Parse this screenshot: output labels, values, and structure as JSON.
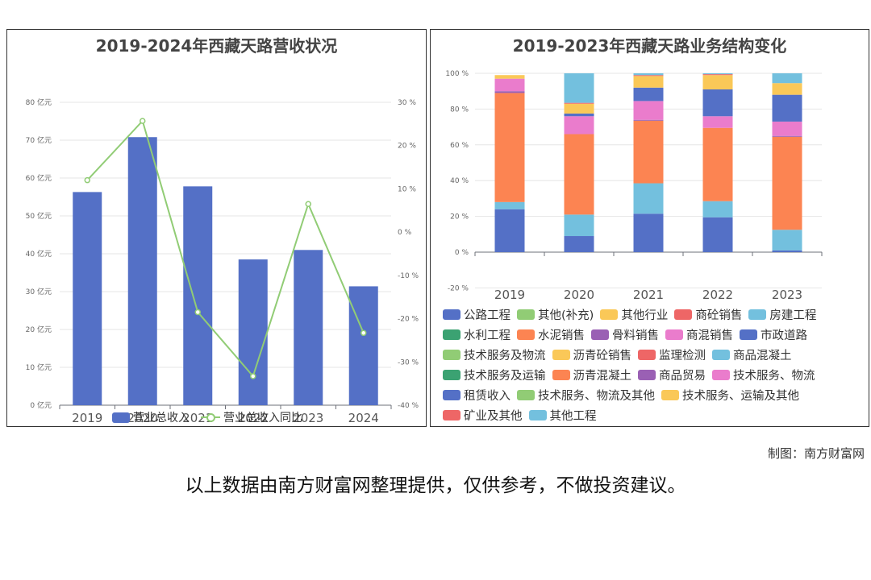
{
  "left": {
    "title": "2019-2024年西藏天路营收状况",
    "y_left_ticks": [
      "0 亿元",
      "10 亿元",
      "20 亿元",
      "30 亿元",
      "40 亿元",
      "50 亿元",
      "60 亿元",
      "70 亿元",
      "80 亿元"
    ],
    "y_right_ticks": [
      "-40 %",
      "-30 %",
      "-20 %",
      "-10 %",
      "0 %",
      "10 %",
      "20 %",
      "30 %"
    ],
    "legend": {
      "bar": "营业总收入",
      "line": "营业总收入同比"
    },
    "colors": {
      "bar": "#5470c6",
      "line": "#91cc75"
    }
  },
  "right": {
    "title": "2019-2023年西藏天路业务结构变化",
    "y_ticks": [
      "-20 %",
      "0 %",
      "20 %",
      "40 %",
      "60 %",
      "80 %",
      "100 %"
    ]
  },
  "legend_right": [
    {
      "label": "公路工程",
      "color": "#5470c6"
    },
    {
      "label": "其他(补充)",
      "color": "#91cc75"
    },
    {
      "label": "其他行业",
      "color": "#fac858"
    },
    {
      "label": "商砼销售",
      "color": "#ee6666"
    },
    {
      "label": "房建工程",
      "color": "#73c0de"
    },
    {
      "label": "水利工程",
      "color": "#3ba272"
    },
    {
      "label": "水泥销售",
      "color": "#fc8452"
    },
    {
      "label": "骨料销售",
      "color": "#9a60b4"
    },
    {
      "label": "商混销售",
      "color": "#ea7ccc"
    },
    {
      "label": "市政道路",
      "color": "#5470c6"
    },
    {
      "label": "技术服务及物流",
      "color": "#91cc75"
    },
    {
      "label": "沥青砼销售",
      "color": "#fac858"
    },
    {
      "label": "监理检测",
      "color": "#ee6666"
    },
    {
      "label": "商品混凝土",
      "color": "#73c0de"
    },
    {
      "label": "技术服务及运输",
      "color": "#3ba272"
    },
    {
      "label": "沥青混凝土",
      "color": "#fc8452"
    },
    {
      "label": "商品贸易",
      "color": "#9a60b4"
    },
    {
      "label": "技术服务、物流",
      "color": "#ea7ccc"
    },
    {
      "label": "租赁收入",
      "color": "#5470c6"
    },
    {
      "label": "技术服务、物流及其他",
      "color": "#91cc75"
    },
    {
      "label": "技术服务、运输及其他",
      "color": "#fac858"
    },
    {
      "label": "矿业及其他",
      "color": "#ee6666"
    },
    {
      "label": "其他工程",
      "color": "#73c0de"
    }
  ],
  "credit": "制图：南方财富网",
  "disclaimer": "以上数据由南方财富网整理提供，仅供参考，不做投资建议。",
  "chart_data": [
    {
      "type": "bar",
      "title": "2019-2024年西藏天路营收状况",
      "categories": [
        "2019",
        "2020",
        "2021",
        "2022",
        "2023",
        "2024"
      ],
      "series": [
        {
          "name": "营业总收入",
          "type": "bar",
          "axis": "left",
          "values": [
            56.3,
            70.8,
            57.8,
            38.5,
            41.0,
            31.4
          ]
        },
        {
          "name": "营业总收入同比",
          "type": "line",
          "axis": "right",
          "values": [
            12.0,
            25.7,
            -18.5,
            -33.3,
            6.5,
            -23.3
          ]
        }
      ],
      "y_left": {
        "min": 0,
        "max": 80,
        "step": 10,
        "unit": "亿元"
      },
      "y_right": {
        "min": -40,
        "max": 30,
        "step": 10,
        "unit": "%"
      }
    },
    {
      "type": "bar",
      "stacked": true,
      "title": "2019-2023年西藏天路业务结构变化",
      "categories": [
        "2019",
        "2020",
        "2021",
        "2022",
        "2023"
      ],
      "ylim": [
        -20,
        100
      ],
      "y_step": 20,
      "series": [
        {
          "name": "公路工程",
          "values": [
            24,
            0,
            0,
            0,
            0
          ]
        },
        {
          "name": "房建工程",
          "values": [
            4,
            0,
            0,
            0,
            0
          ]
        },
        {
          "name": "水泥销售",
          "values": [
            61,
            0,
            0,
            0,
            0
          ]
        },
        {
          "name": "骨料销售",
          "values": [
            1,
            0,
            0,
            0,
            0
          ]
        },
        {
          "name": "商混销售",
          "values": [
            7,
            0,
            0,
            0,
            0
          ]
        },
        {
          "name": "其他行业",
          "values": [
            2,
            0,
            0,
            0,
            0
          ]
        },
        {
          "name": "市政道路",
          "values": [
            0,
            9,
            21.5,
            19.5,
            1
          ]
        },
        {
          "name": "商品混凝土",
          "values": [
            0,
            12,
            17,
            9,
            11.5
          ]
        },
        {
          "name": "沥青混凝土",
          "values": [
            0,
            45,
            35,
            41,
            52
          ]
        },
        {
          "name": "商品贸易",
          "values": [
            0,
            0,
            0.5,
            0,
            0.5
          ]
        },
        {
          "name": "技术服务、物流",
          "values": [
            0,
            10,
            10.5,
            6.5,
            8
          ]
        },
        {
          "name": "租赁收入",
          "values": [
            0,
            1.5,
            7.5,
            15,
            15
          ]
        },
        {
          "name": "技术服务、运输及其他",
          "values": [
            0,
            5.5,
            6.5,
            8,
            6.5
          ]
        },
        {
          "name": "矿业及其他",
          "values": [
            0,
            0.5,
            0.5,
            0.5,
            0
          ]
        },
        {
          "name": "其他工程",
          "values": [
            0,
            16.5,
            1,
            0.5,
            5.5
          ]
        }
      ]
    }
  ]
}
